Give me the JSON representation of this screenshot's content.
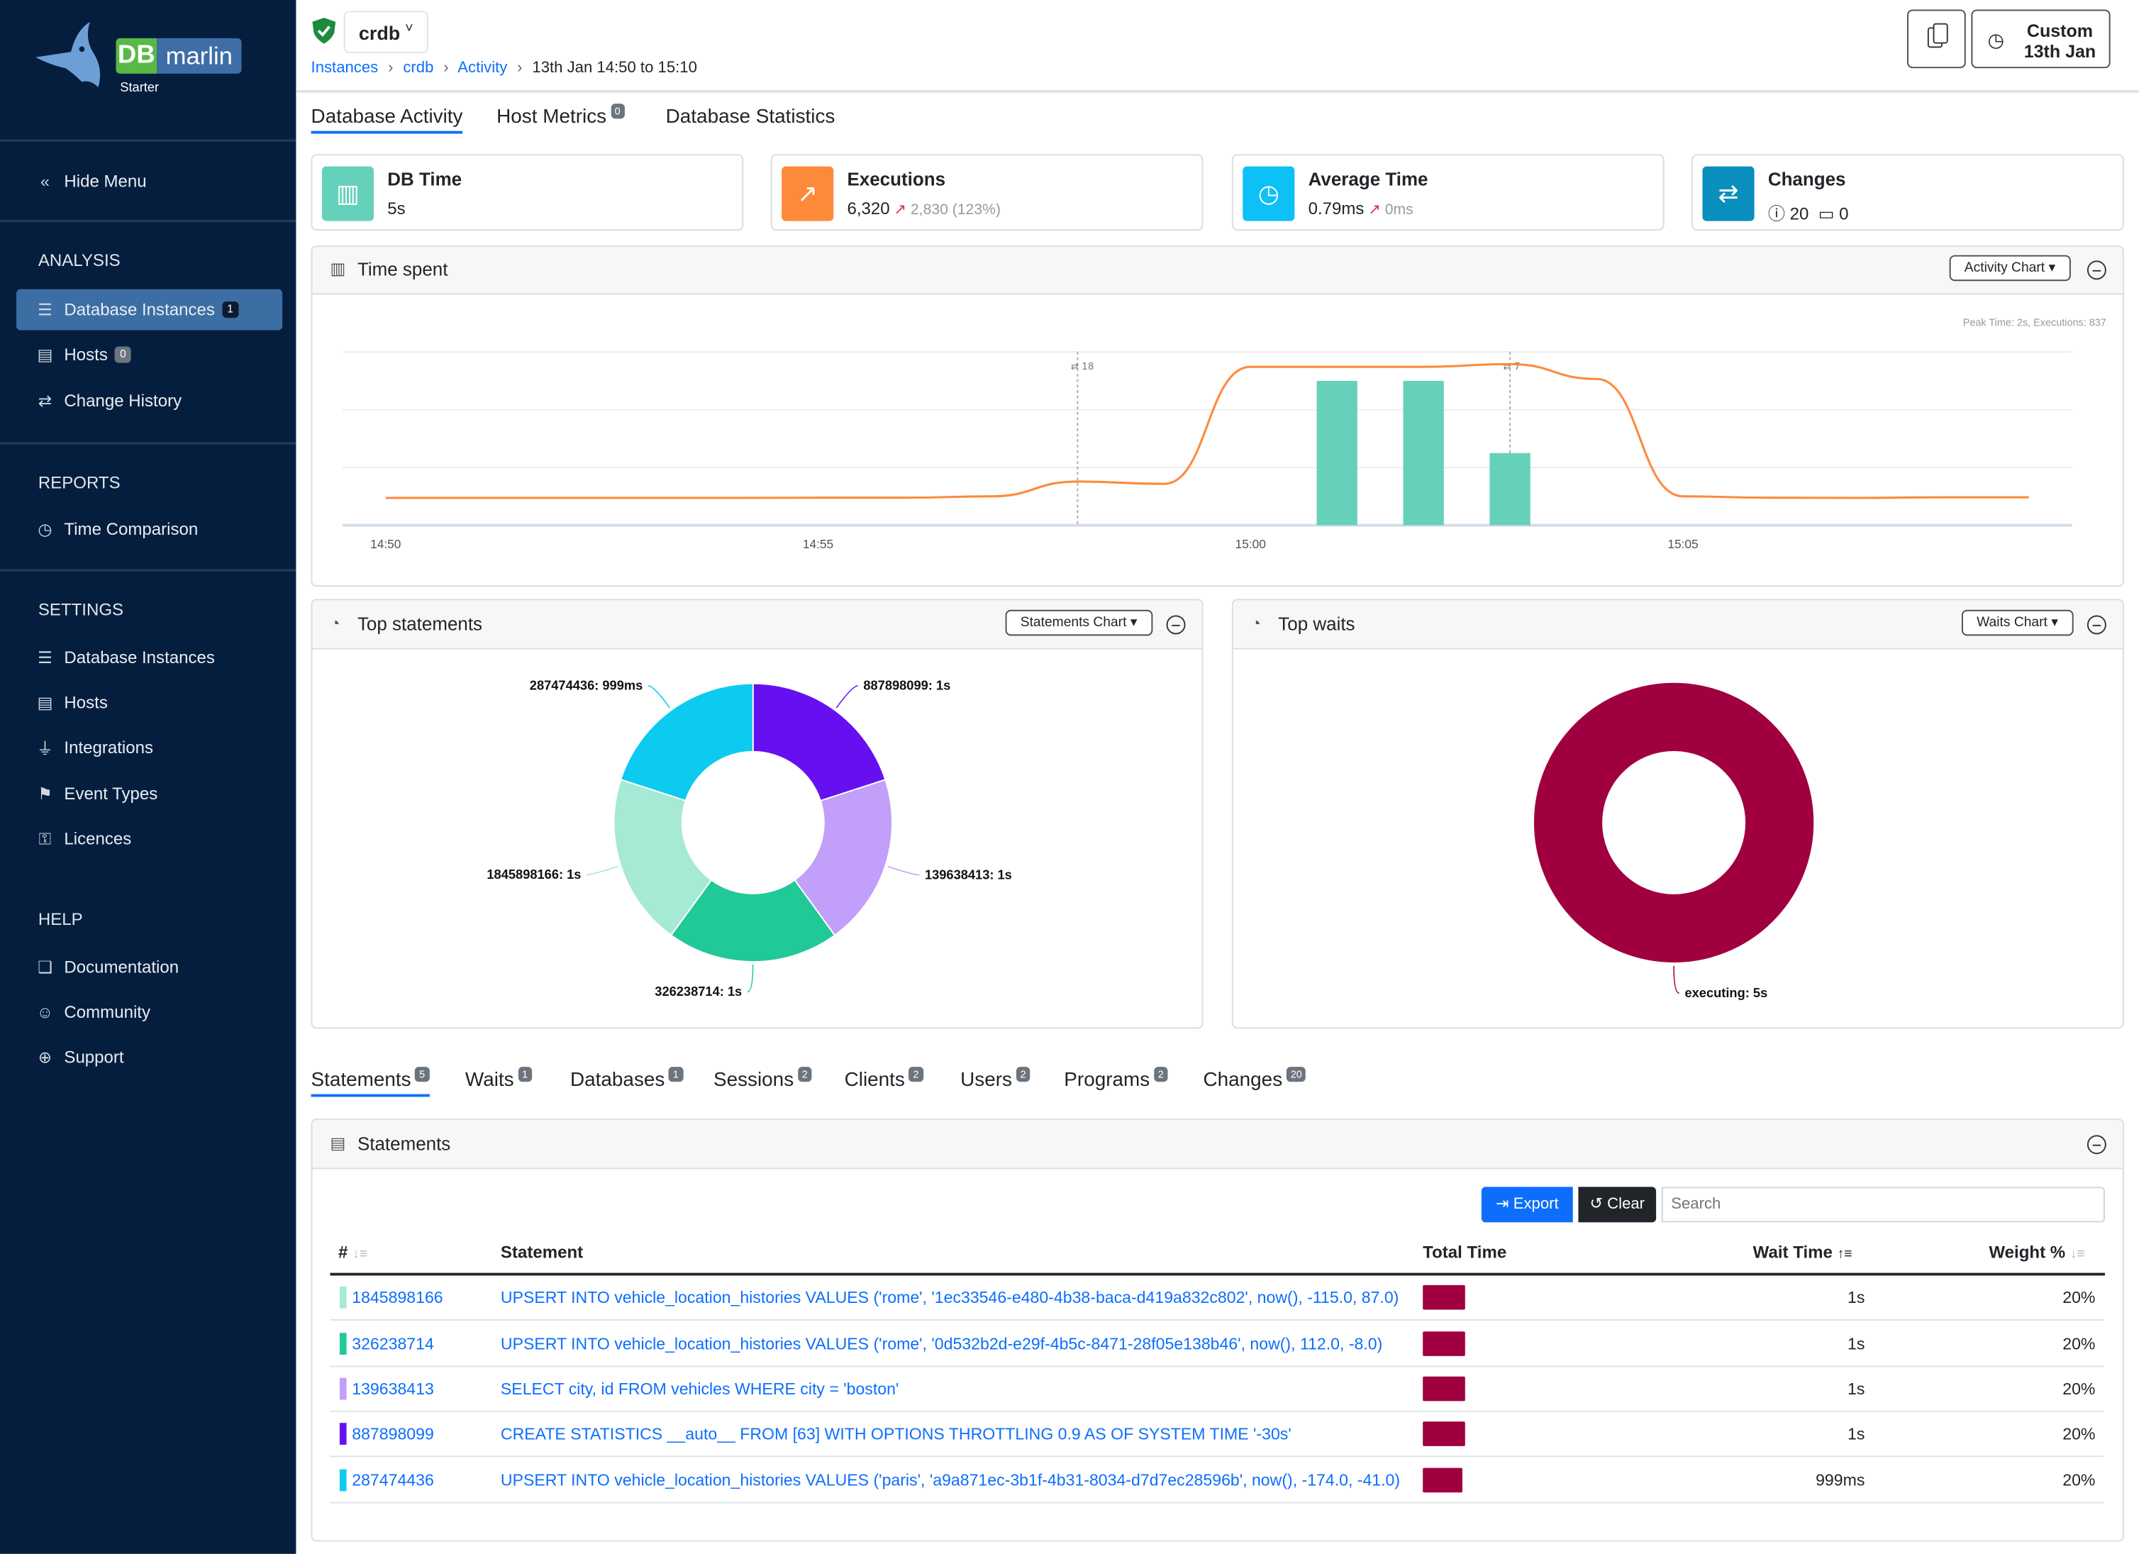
{
  "sidebar": {
    "logo_db": "DB",
    "logo_marlin": "marlin",
    "edition": "Starter",
    "hide_menu": "Hide Menu",
    "analysis": {
      "title": "ANALYSIS",
      "items": [
        {
          "label": "Database Instances",
          "badge": "1",
          "active": true
        },
        {
          "label": "Hosts",
          "badge": "0"
        },
        {
          "label": "Change History"
        }
      ]
    },
    "reports": {
      "title": "REPORTS",
      "items": [
        {
          "label": "Time Comparison"
        }
      ]
    },
    "settings": {
      "title": "SETTINGS",
      "items": [
        {
          "label": "Database Instances"
        },
        {
          "label": "Hosts"
        },
        {
          "label": "Integrations"
        },
        {
          "label": "Event Types"
        },
        {
          "label": "Licences"
        }
      ]
    },
    "help": {
      "title": "HELP",
      "items": [
        {
          "label": "Documentation"
        },
        {
          "label": "Community"
        },
        {
          "label": "Support"
        }
      ]
    }
  },
  "header": {
    "instance": "crdb",
    "breadcrumb": [
      "Instances",
      "crdb",
      "Activity"
    ],
    "range": "13th Jan 14:50 to 15:10",
    "custom_line1": "Custom",
    "custom_line2": "13th Jan"
  },
  "tabs": [
    {
      "label": "Database Activity",
      "active": true
    },
    {
      "label": "Host Metrics",
      "badge": "0"
    },
    {
      "label": "Database Statistics"
    }
  ],
  "kpis": [
    {
      "title": "DB Time",
      "value": "5s",
      "color": "#66d1bb",
      "icon": "bar-chart-icon"
    },
    {
      "title": "Executions",
      "value": "6,320",
      "delta": "2,830 (123%)",
      "color": "#fd8a3b",
      "icon": "trend-up-icon"
    },
    {
      "title": "Average Time",
      "value": "0.79ms",
      "delta": "0ms",
      "color": "#0dc0f5",
      "icon": "clock-icon"
    },
    {
      "title": "Changes",
      "info_count": "20",
      "calendar_count": "0",
      "color": "#0a8fbe",
      "icon": "arrows-exchange-icon"
    }
  ],
  "time_spent": {
    "title": "Time spent",
    "dropdown": "Activity Chart",
    "peak_note": "Peak Time: 2s, Executions: 837",
    "markers": [
      {
        "time": "14:58",
        "label": "18"
      },
      {
        "time": "15:03",
        "label": "7"
      }
    ]
  },
  "top_statements": {
    "title": "Top statements",
    "dropdown": "Statements Chart"
  },
  "top_waits": {
    "title": "Top waits",
    "dropdown": "Waits Chart"
  },
  "chart_data": [
    {
      "type": "bar+line",
      "x_ticks": [
        "14:50",
        "14:55",
        "15:00",
        "15:05"
      ],
      "xlim": [
        "14:49:30",
        "15:09:30"
      ],
      "grid": true,
      "bars": {
        "unit": "s",
        "x": [
          "15:01",
          "15:02",
          "15:03"
        ],
        "values": [
          2,
          2,
          1
        ],
        "color": "#66d1bb",
        "ylim": [
          0,
          2.4
        ]
      },
      "line": {
        "x": [
          "14:50",
          "14:51",
          "14:52",
          "14:53",
          "14:54",
          "14:55",
          "14:56",
          "14:57",
          "14:58",
          "14:59",
          "15:00",
          "15:01",
          "15:02",
          "15:03",
          "15:04",
          "15:05",
          "15:06",
          "15:07",
          "15:08",
          "15:09"
        ],
        "values": [
          142,
          142,
          142,
          142,
          142,
          143,
          143,
          150,
          227,
          215,
          823,
          823,
          823,
          837,
          760,
          150,
          143,
          142,
          145,
          145
        ],
        "color": "#fd8a3b",
        "ylim": [
          0,
          900
        ]
      }
    },
    {
      "type": "pie",
      "donut": true,
      "labels": [
        "887898099: 1s",
        "139638413: 1s",
        "326238714: 1s",
        "1845898166: 1s",
        "287474436: 999ms"
      ],
      "values": [
        1,
        1,
        1,
        1,
        0.999
      ],
      "colors": [
        "#6610f2",
        "#c29ffa",
        "#20c997",
        "#a6e9d5",
        "#0dcaf0"
      ]
    },
    {
      "type": "pie",
      "donut": true,
      "labels": [
        "executing: 5s"
      ],
      "values": [
        5
      ],
      "colors": [
        "#a0003f"
      ]
    }
  ],
  "bottom_tabs": [
    {
      "label": "Statements",
      "badge": "5",
      "active": true
    },
    {
      "label": "Waits",
      "badge": "1"
    },
    {
      "label": "Databases",
      "badge": "1"
    },
    {
      "label": "Sessions",
      "badge": "2"
    },
    {
      "label": "Clients",
      "badge": "2"
    },
    {
      "label": "Users",
      "badge": "2"
    },
    {
      "label": "Programs",
      "badge": "2"
    },
    {
      "label": "Changes",
      "badge": "20"
    }
  ],
  "statements": {
    "title": "Statements",
    "export": "Export",
    "clear": "Clear",
    "search_placeholder": "Search",
    "columns": [
      "#",
      "Statement",
      "Total Time",
      "Wait Time",
      "Weight %"
    ],
    "rows": [
      {
        "id": "1845898166",
        "statement": "UPSERT INTO vehicle_location_histories VALUES ('rome', '1ec33546-e480-4b38-baca-d419a832c802', now(), -115.0, 87.0)",
        "wait": "1s",
        "weight": "20%",
        "color": "#a6e9d5"
      },
      {
        "id": "326238714",
        "statement": "UPSERT INTO vehicle_location_histories VALUES ('rome', '0d532b2d-e29f-4b5c-8471-28f05e138b46', now(), 112.0, -8.0)",
        "wait": "1s",
        "weight": "20%",
        "color": "#20c997"
      },
      {
        "id": "139638413",
        "statement": "SELECT city, id FROM vehicles WHERE city = 'boston'",
        "wait": "1s",
        "weight": "20%",
        "color": "#c29ffa"
      },
      {
        "id": "887898099",
        "statement": "CREATE STATISTICS __auto__ FROM [63] WITH OPTIONS THROTTLING 0.9 AS OF SYSTEM TIME '-30s'",
        "wait": "1s",
        "weight": "20%",
        "color": "#6610f2"
      },
      {
        "id": "287474436",
        "statement": "UPSERT INTO vehicle_location_histories VALUES ('paris', 'a9a871ec-3b1f-4b31-8034-d7d7ec28596b', now(), -174.0, -41.0)",
        "wait": "999ms",
        "weight": "20%",
        "color": "#0dcaf0"
      }
    ]
  }
}
